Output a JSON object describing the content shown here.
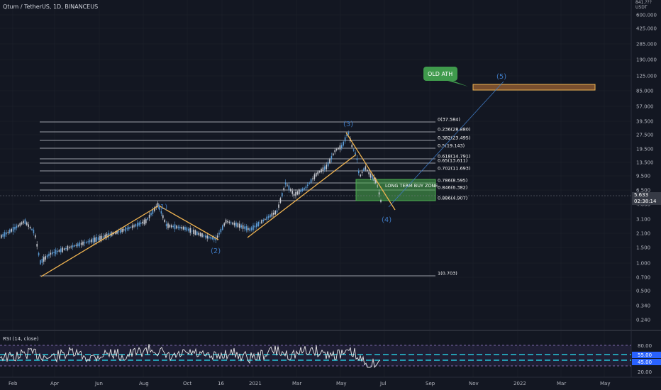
{
  "header": {
    "symbol_title": "Qtum / TetherUS, 1D, BINANCEUS"
  },
  "colors": {
    "background": "#131722",
    "candle_up": "#c8cbd2",
    "candle_down": "#5b9bd5",
    "fib_line": "#c8cbd2",
    "trendline": "#f0b451",
    "wave_label": "#3e78c0",
    "buy_zone": "#4caf50",
    "ath_box_fill": "#7a4f2e",
    "ath_box_border": "#f0b451",
    "rsi_band": "#7e57c2",
    "rsi_line": "#e8e8e8",
    "rsi_level": "#26c6da"
  },
  "price_axis": {
    "unit_label": "USDT",
    "top_label": "841.???",
    "labels": [
      "600.000",
      "425.000",
      "285.000",
      "190.000",
      "125.000",
      "85.000",
      "57.000",
      "39.500",
      "27.500",
      "19.500",
      "13.500",
      "9.500",
      "6.500",
      "4.600",
      "3.100",
      "2.100",
      "1.500",
      "1.000",
      "0.700",
      "0.500",
      "0.340",
      "0.240"
    ],
    "current_price": "5.633",
    "countdown": "02:38:14"
  },
  "time_axis": {
    "labels": [
      "Feb",
      "Apr",
      "Jun",
      "Aug",
      "Oct",
      "16",
      "2021",
      "Mar",
      "May",
      "Jul",
      "Sep",
      "Nov",
      "2022",
      "Mar",
      "May"
    ]
  },
  "fib_levels": [
    {
      "label": "0(37.584)"
    },
    {
      "label": "0.236(28.880)"
    },
    {
      "label": "0.382(23.495)"
    },
    {
      "label": "0.5(19.143)"
    },
    {
      "label": "0.618(14.791)"
    },
    {
      "label": "0.65(13.611)"
    },
    {
      "label": "0.702(11.693)"
    },
    {
      "label": "0.786(8.595)"
    },
    {
      "label": "0.846(6.382)"
    },
    {
      "label": "0.886(4.907)"
    },
    {
      "label": "1(0.703)"
    }
  ],
  "annotations": {
    "old_ath": "OLD ATH",
    "buy_zone": "LONG TERM BUY ZONE",
    "waves": [
      "(1)",
      "(2)",
      "(3)",
      "(4)",
      "(5)"
    ]
  },
  "rsi": {
    "title": "RSI (14, close)",
    "levels": [
      "80.00",
      "55.00",
      "45.00",
      "20.00"
    ]
  }
}
